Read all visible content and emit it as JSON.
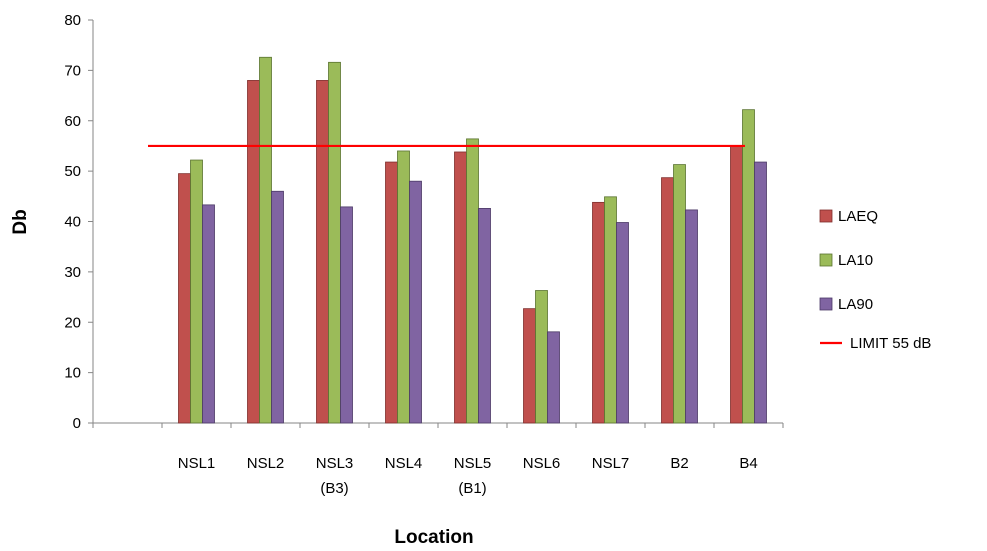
{
  "chart_data": {
    "type": "bar",
    "title": "",
    "xlabel": "Location",
    "ylabel": "Db",
    "ylim": [
      0,
      80
    ],
    "yticks": [
      0,
      10,
      20,
      30,
      40,
      50,
      60,
      70,
      80
    ],
    "grid": false,
    "legend_position": "right",
    "categories": [
      [
        "",
        ""
      ],
      [
        "NSL1",
        ""
      ],
      [
        "NSL2",
        ""
      ],
      [
        "NSL3",
        "(B3)"
      ],
      [
        "NSL4",
        ""
      ],
      [
        "NSL5",
        "(B1)"
      ],
      [
        "NSL6",
        ""
      ],
      [
        "NSL7",
        ""
      ],
      [
        "B2",
        ""
      ],
      [
        "B4",
        ""
      ]
    ],
    "series": [
      {
        "name": "LAEQ",
        "color": "#c0504d",
        "stroke": "#7f2e2c",
        "values": [
          null,
          49.5,
          68.0,
          68.0,
          51.8,
          53.8,
          22.7,
          43.8,
          48.7,
          55.0
        ]
      },
      {
        "name": "LA10",
        "color": "#9bbb59",
        "stroke": "#5a7330",
        "values": [
          null,
          52.2,
          72.6,
          71.6,
          54.0,
          56.4,
          26.3,
          44.9,
          51.3,
          62.2
        ]
      },
      {
        "name": "LA90",
        "color": "#8064a2",
        "stroke": "#4b3966",
        "values": [
          null,
          43.3,
          46.0,
          42.9,
          48.0,
          42.6,
          18.1,
          39.8,
          42.3,
          51.8
        ]
      }
    ],
    "limit_line": {
      "name": "LIMIT 55 dB",
      "value": 55,
      "color": "#ff0000"
    }
  }
}
